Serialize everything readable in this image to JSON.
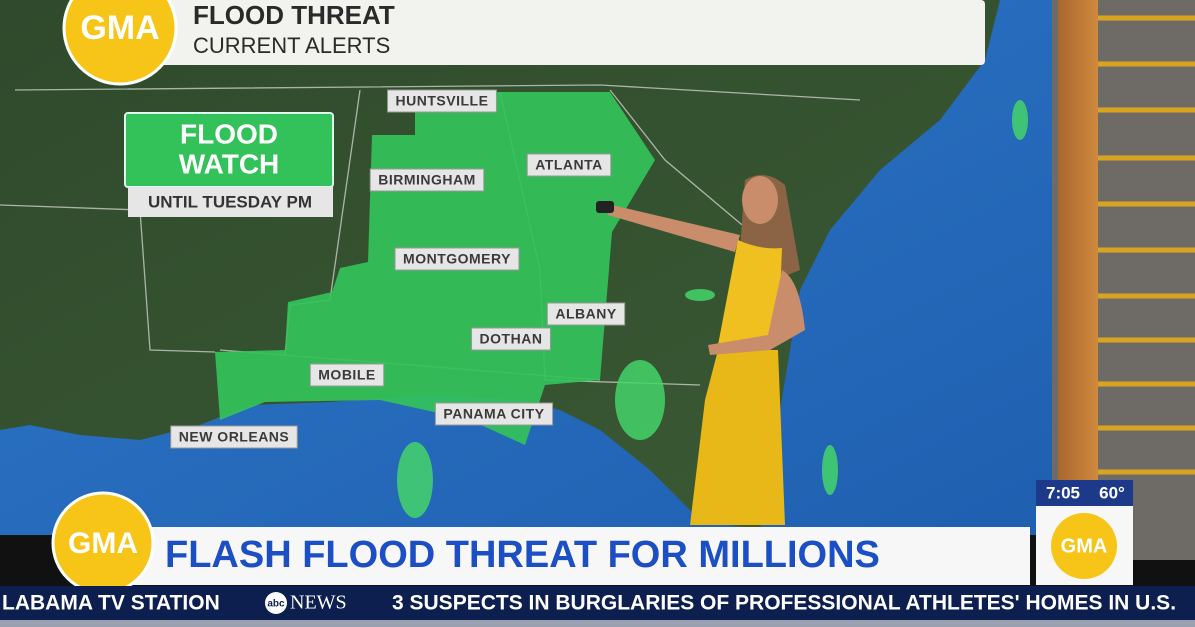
{
  "header": {
    "logo": "GMA",
    "title": "FLOOD THREAT",
    "subtitle": "CURRENT ALERTS"
  },
  "alert": {
    "lines": [
      "FLOOD",
      "WATCH"
    ],
    "until": "UNTIL TUESDAY PM"
  },
  "map_labels": [
    "HUNTSVILLE",
    "ATLANTA",
    "BIRMINGHAM",
    "MONTGOMERY",
    "ALBANY",
    "DOTHAN",
    "MOBILE",
    "PANAMA CITY",
    "NEW ORLEANS"
  ],
  "lower_third": {
    "logo": "GMA",
    "headline": "FLASH FLOOD THREAT FOR MILLIONS"
  },
  "clock": {
    "time": "7:05",
    "temp": "60°",
    "logo": "GMA"
  },
  "ticker": {
    "left": "LABAMA TV STATION",
    "network_badge": "abc",
    "network": "NEWS",
    "right": "3 SUSPECTS IN BURGLARIES OF PROFESSIONAL ATHLETES' HOMES IN U.S."
  }
}
